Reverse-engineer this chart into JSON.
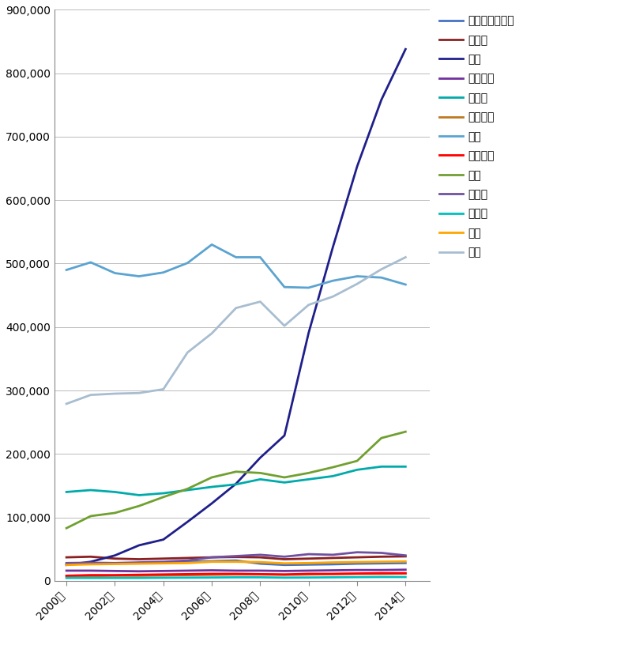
{
  "years": [
    2000,
    2001,
    2002,
    2003,
    2004,
    2005,
    2006,
    2007,
    2008,
    2009,
    2010,
    2011,
    2012,
    2013,
    2014
  ],
  "series": {
    "オーストラリア": [
      26000,
      27000,
      27500,
      28000,
      29000,
      30000,
      31000,
      32000,
      27000,
      25000,
      25500,
      26000,
      27000,
      27500,
      28000
    ],
    "カナダ": [
      37000,
      38000,
      35000,
      34000,
      35000,
      36000,
      37000,
      37500,
      37000,
      34000,
      35000,
      36000,
      37000,
      38000,
      38500
    ],
    "中国": [
      25000,
      30000,
      40000,
      56000,
      65000,
      93000,
      122000,
      153000,
      194000,
      229000,
      391000,
      526000,
      653000,
      758000,
      838000
    ],
    "フランス": [
      16000,
      16000,
      15500,
      15000,
      15500,
      16000,
      16500,
      16000,
      16000,
      15500,
      16000,
      16500,
      17000,
      17000,
      17500
    ],
    "ドイツ": [
      140000,
      143000,
      140000,
      135000,
      138000,
      143000,
      148000,
      152000,
      160000,
      155000,
      160000,
      165000,
      175000,
      180000,
      180000
    ],
    "イタリア": [
      7000,
      7500,
      8000,
      8000,
      8500,
      9000,
      9500,
      10000,
      10000,
      9500,
      10000,
      10500,
      11000,
      11000,
      11500
    ],
    "日本": [
      490000,
      502000,
      485000,
      480000,
      486000,
      501000,
      530000,
      510000,
      510000,
      463000,
      462000,
      473000,
      480000,
      478000,
      467000
    ],
    "オランダ": [
      8000,
      9000,
      9000,
      9500,
      10000,
      10500,
      11000,
      11000,
      10500,
      10000,
      11000,
      11000,
      11500,
      12000,
      12000
    ],
    "韓国": [
      83000,
      102000,
      107000,
      118000,
      132000,
      145000,
      163000,
      172000,
      170000,
      163000,
      170000,
      179000,
      189000,
      225000,
      235000
    ],
    "ロシア": [
      28000,
      28500,
      28000,
      29000,
      30000,
      32000,
      37000,
      39000,
      41000,
      38000,
      42000,
      41000,
      45000,
      44000,
      40000
    ],
    "スイス": [
      4500,
      4500,
      4500,
      4500,
      4800,
      5000,
      5200,
      5500,
      5500,
      5000,
      5200,
      5500,
      5800,
      6000,
      6000
    ],
    "英国": [
      25000,
      26000,
      26500,
      27000,
      27500,
      28000,
      30000,
      30000,
      29500,
      27500,
      28000,
      29000,
      29500,
      30000,
      30500
    ],
    "米国": [
      279000,
      293000,
      295000,
      296000,
      302000,
      360000,
      390000,
      430000,
      440000,
      402000,
      435000,
      448000,
      468000,
      491000,
      510000
    ]
  },
  "colors": {
    "オーストラリア": "#4472C4",
    "カナダ": "#8B2020",
    "中国": "#1F1F8B",
    "フランス": "#7030A0",
    "ドイツ": "#00AAAA",
    "イタリア": "#C07820",
    "日本": "#5BA3D0",
    "オランダ": "#FF0000",
    "韓国": "#70A030",
    "ロシア": "#7050A0",
    "スイス": "#00C0C0",
    "英国": "#FFA500",
    "米国": "#A8BDD0"
  },
  "legend_order": [
    "オーストラリア",
    "カナダ",
    "中国",
    "フランス",
    "ドイツ",
    "イタリア",
    "日本",
    "オランダ",
    "韓国",
    "ロシア",
    "スイス",
    "英国",
    "米国"
  ],
  "ylim": [
    0,
    900000
  ],
  "yticks": [
    0,
    100000,
    200000,
    300000,
    400000,
    500000,
    600000,
    700000,
    800000,
    900000
  ]
}
